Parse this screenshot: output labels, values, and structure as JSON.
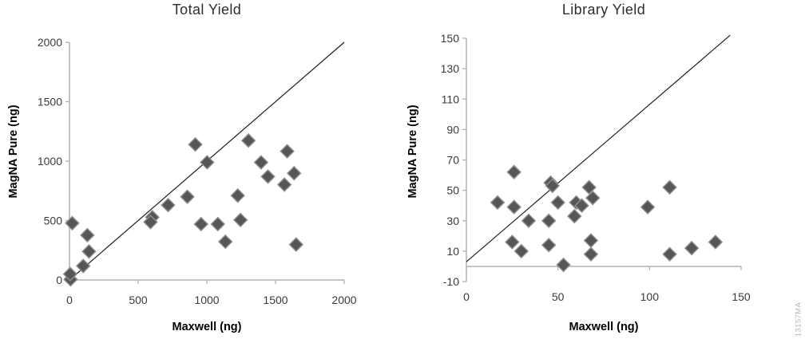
{
  "figure_id": "13157MA",
  "style": {
    "axis_color": "#b2b2b2",
    "tick_label_color": "#3b3b3b",
    "identity_line_color": "#1f1f1f",
    "marker_fill": "#565659",
    "marker_stroke": "#909093"
  },
  "chart_data": [
    {
      "type": "scatter",
      "title": "Total Yield",
      "xlabel": "Maxwell (ng)",
      "ylabel": "MagNA Pure (ng)",
      "xlim": [
        0,
        2000
      ],
      "ylim": [
        0,
        2000
      ],
      "xticks": [
        0,
        500,
        1000,
        1500,
        2000
      ],
      "yticks": [
        0,
        500,
        1000,
        1500,
        2000
      ],
      "x_axis_at_y": 0,
      "grid": false,
      "legend": "none",
      "identity_line": {
        "x1": 0,
        "y1": 0,
        "x2": 2000,
        "y2": 2000
      },
      "points": [
        [
          8,
          5
        ],
        [
          5,
          50
        ],
        [
          20,
          478
        ],
        [
          100,
          118
        ],
        [
          130,
          377
        ],
        [
          142,
          240
        ],
        [
          603,
          528
        ],
        [
          590,
          487
        ],
        [
          718,
          630
        ],
        [
          858,
          700
        ],
        [
          916,
          1140
        ],
        [
          958,
          470
        ],
        [
          1002,
          990
        ],
        [
          1080,
          470
        ],
        [
          1135,
          322
        ],
        [
          1225,
          710
        ],
        [
          1245,
          505
        ],
        [
          1303,
          1173
        ],
        [
          1395,
          990
        ],
        [
          1445,
          870
        ],
        [
          1565,
          802
        ],
        [
          1585,
          1083
        ],
        [
          1635,
          898
        ],
        [
          1650,
          298
        ]
      ]
    },
    {
      "type": "scatter",
      "title": "Library Yield",
      "xlabel": "Maxwell (ng)",
      "ylabel": "MagNA Pure (ng)",
      "xlim": [
        0,
        150
      ],
      "ylim": [
        -10,
        150
      ],
      "xticks": [
        0,
        50,
        100,
        150
      ],
      "yticks": [
        -10,
        10,
        30,
        50,
        70,
        90,
        110,
        130,
        150
      ],
      "x_axis_at_y": 0,
      "grid": false,
      "legend": "none",
      "identity_line": {
        "x1": 0,
        "y1": 3,
        "x2": 144,
        "y2": 152
      },
      "points": [
        [
          17,
          42
        ],
        [
          26,
          62
        ],
        [
          26,
          39
        ],
        [
          25,
          16
        ],
        [
          30,
          10
        ],
        [
          34,
          30
        ],
        [
          45,
          30
        ],
        [
          45,
          14
        ],
        [
          46,
          55
        ],
        [
          47,
          53
        ],
        [
          50,
          42
        ],
        [
          53,
          1
        ],
        [
          59,
          33
        ],
        [
          60,
          42
        ],
        [
          63,
          40
        ],
        [
          67,
          52
        ],
        [
          69,
          45
        ],
        [
          68,
          17
        ],
        [
          68,
          8
        ],
        [
          99,
          39
        ],
        [
          111,
          52
        ],
        [
          111,
          8
        ],
        [
          123,
          12
        ],
        [
          136,
          16
        ]
      ]
    }
  ]
}
